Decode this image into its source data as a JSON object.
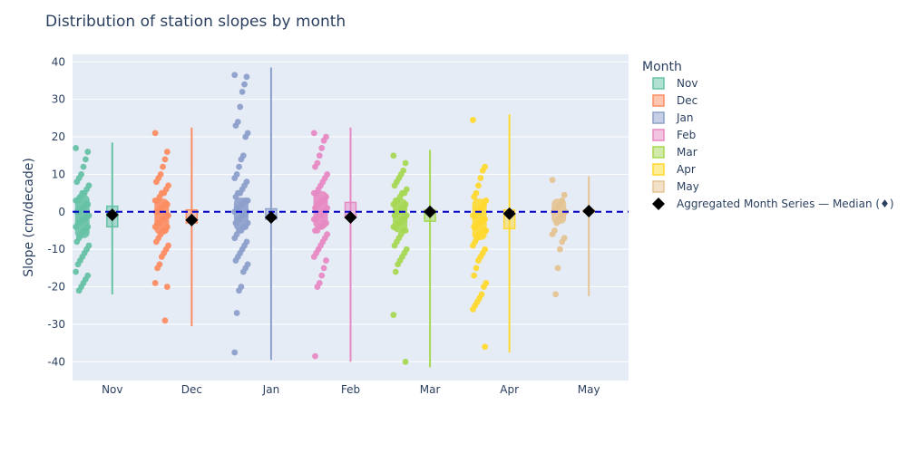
{
  "chart_data": {
    "type": "box-strip",
    "title": "Distribution of station slopes by month",
    "xlabel": "",
    "ylabel": "Slope (cm/decade)",
    "categories": [
      "Nov",
      "Dec",
      "Jan",
      "Feb",
      "Mar",
      "Apr",
      "May"
    ],
    "ylim": [
      -45,
      42
    ],
    "yticks": [
      -40,
      -30,
      -20,
      -10,
      0,
      10,
      20,
      30,
      40
    ],
    "grid": true,
    "reference_line": {
      "y": 0,
      "style": "dashed",
      "color": "#0000cc"
    },
    "legend": {
      "title": "Month",
      "placement": "right"
    },
    "series": [
      {
        "name": "Nov",
        "color": "#66c2a5",
        "box": {
          "min": -22,
          "q1": -4,
          "median": -0.8,
          "q3": 1.5,
          "max": 18.5
        },
        "points": [
          17,
          16,
          14,
          12,
          10,
          9,
          8,
          7,
          6,
          5,
          5,
          4,
          3,
          3,
          2,
          2,
          1,
          1,
          0,
          0,
          -1,
          -1,
          -2,
          -2,
          -3,
          -3,
          -4,
          -4,
          -5,
          -5,
          -6,
          -7,
          -8,
          -9,
          -10,
          -11,
          -12,
          -13,
          -14,
          -16,
          -17,
          -18,
          -19,
          -20,
          -21
        ]
      },
      {
        "name": "Dec",
        "color": "#fc8d62",
        "box": {
          "min": -30.5,
          "q1": -3,
          "median": -2.2,
          "q3": 0.5,
          "max": 22.5
        },
        "points": [
          21,
          16,
          14,
          12,
          10,
          9,
          8,
          7,
          6,
          5,
          5,
          4,
          3,
          3,
          2,
          2,
          1,
          1,
          0,
          0,
          -1,
          -1,
          -2,
          -2,
          -3,
          -3,
          -4,
          -4,
          -5,
          -5,
          -6,
          -7,
          -8,
          -9,
          -10,
          -11,
          -12,
          -14,
          -15,
          -19,
          -20,
          -29
        ]
      },
      {
        "name": "Jan",
        "color": "#8da0cb",
        "box": {
          "min": -39.5,
          "q1": -2,
          "median": -1.5,
          "q3": 0.8,
          "max": 38.5
        },
        "points": [
          36.5,
          36,
          34,
          32,
          28,
          24,
          23,
          21,
          20,
          15,
          14,
          12,
          10,
          9,
          8,
          7,
          6,
          5,
          5,
          4,
          3,
          3,
          2,
          2,
          1,
          1,
          0,
          0,
          -1,
          -1,
          -2,
          -2,
          -3,
          -3,
          -4,
          -4,
          -5,
          -5,
          -6,
          -7,
          -8,
          -9,
          -10,
          -11,
          -12,
          -13,
          -14,
          -15,
          -16,
          -20,
          -21,
          -27,
          -37.5
        ]
      },
      {
        "name": "Feb",
        "color": "#e78ac3",
        "box": {
          "min": -40,
          "q1": -1.5,
          "median": -1.5,
          "q3": 2.5,
          "max": 22.5
        },
        "points": [
          21,
          20,
          19,
          17,
          15,
          13,
          12,
          10,
          9,
          8,
          7,
          6,
          5,
          5,
          4,
          3,
          3,
          2,
          2,
          1,
          1,
          0,
          0,
          -1,
          -1,
          -2,
          -2,
          -3,
          -3,
          -4,
          -4,
          -5,
          -5,
          -6,
          -7,
          -8,
          -9,
          -10,
          -11,
          -12,
          -13,
          -15,
          -17,
          -19,
          -20,
          -38.5
        ]
      },
      {
        "name": "Mar",
        "color": "#a6d854",
        "box": {
          "min": -41.5,
          "q1": -2.5,
          "median": 0,
          "q3": 0.5,
          "max": 16.5
        },
        "points": [
          15,
          13,
          11,
          10,
          9,
          8,
          7,
          6,
          5,
          5,
          4,
          3,
          3,
          2,
          2,
          1,
          1,
          0,
          0,
          -1,
          -1,
          -2,
          -2,
          -3,
          -3,
          -4,
          -4,
          -5,
          -5,
          -6,
          -7,
          -8,
          -9,
          -10,
          -11,
          -12,
          -13,
          -14,
          -16,
          -27.5,
          -40
        ]
      },
      {
        "name": "Apr",
        "color": "#ffd92f",
        "box": {
          "min": -37.5,
          "q1": -4.5,
          "median": -0.5,
          "q3": 0.5,
          "max": 26
        },
        "points": [
          24.5,
          12,
          11,
          9,
          7,
          5,
          4,
          3,
          2,
          1,
          0,
          0,
          -1,
          -1,
          -2,
          -2,
          -3,
          -3,
          -4,
          -4,
          -5,
          -5,
          -6,
          -6,
          -7,
          -8,
          -9,
          -10,
          -11,
          -12,
          -13,
          -15,
          -17,
          -19,
          -20,
          -22,
          -23,
          -24,
          -25,
          -26,
          -36
        ]
      },
      {
        "name": "May",
        "color": "#e5c494",
        "box": {
          "min": -22.5,
          "q1": -0.2,
          "median": 0.2,
          "q3": 0.5,
          "max": 9.5
        },
        "points": [
          8.5,
          4.5,
          3,
          2,
          1,
          0.5,
          0,
          0,
          -0.5,
          -1,
          -2,
          -3,
          -5,
          -6,
          -7,
          -8,
          -10,
          -15,
          -22
        ]
      }
    ],
    "aggregate_series": {
      "name": "Aggregated Month Series — Median (♦)",
      "color": "#000000",
      "values": [
        -0.8,
        -2.2,
        -1.5,
        -1.5,
        0,
        -0.5,
        0.2
      ]
    }
  }
}
